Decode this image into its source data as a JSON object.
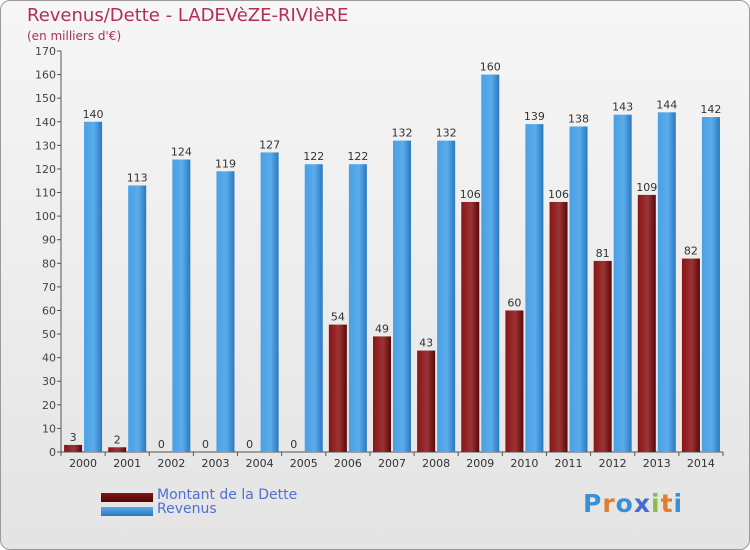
{
  "header": {
    "title": "Revenus/Dette - LADEVèZE-RIVIèRE",
    "subtitle": "(en milliers d'€)"
  },
  "legend": {
    "items": [
      {
        "label": "Montant de la Dette",
        "color": "#6a0a0a"
      },
      {
        "label": "Revenus",
        "color": "#3a90d8"
      }
    ]
  },
  "logo": {
    "text": "Proxiti",
    "letter_colors": [
      "#3a90d8",
      "#e0802a",
      "#3a90d8",
      "#4a6ad0",
      "#8ac040",
      "#e0802a",
      "#3a90d8"
    ]
  },
  "chart_data": {
    "type": "bar",
    "title": "Revenus/Dette - LADEVèZE-RIVIèRE",
    "subtitle": "(en milliers d'€)",
    "categories": [
      "2000",
      "2001",
      "2002",
      "2003",
      "2004",
      "2005",
      "2006",
      "2007",
      "2008",
      "2009",
      "2010",
      "2011",
      "2012",
      "2013",
      "2014"
    ],
    "series": [
      {
        "name": "Montant de la Dette",
        "color": "#6a0a0a",
        "values": [
          3,
          2,
          0,
          0,
          0,
          0,
          54,
          49,
          43,
          106,
          60,
          106,
          81,
          109,
          82
        ]
      },
      {
        "name": "Revenus",
        "color": "#3a90d8",
        "values": [
          140,
          113,
          124,
          119,
          127,
          122,
          122,
          132,
          132,
          160,
          139,
          138,
          143,
          144,
          142
        ]
      }
    ],
    "ylim": [
      0,
      170
    ],
    "ytick_step": 10,
    "grid": false,
    "legend_position": "bottom-left"
  }
}
